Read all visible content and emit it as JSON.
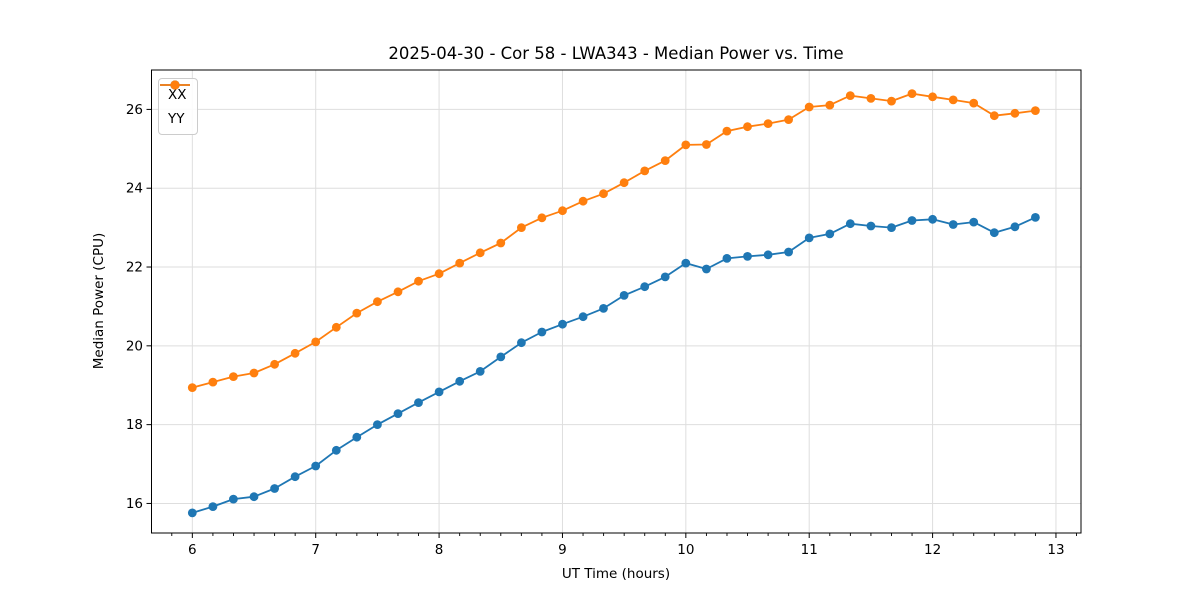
{
  "chart_data": {
    "type": "line",
    "title": "2025-04-30 - Cor 58 - LWA343 - Median Power vs. Time",
    "xlabel": "UT Time (hours)",
    "ylabel": "Median Power (CPU)",
    "xlim": [
      5.669,
      13.203
    ],
    "ylim": [
      15.25,
      27.0
    ],
    "xticks": [
      6,
      7,
      8,
      9,
      10,
      11,
      12,
      13
    ],
    "yticks": [
      16,
      18,
      20,
      22,
      24,
      26
    ],
    "minor_xtick_step": 0.16667,
    "grid": true,
    "grid_color": "#dedede",
    "legend_position": "upper left",
    "x": [
      6.0,
      6.167,
      6.333,
      6.5,
      6.667,
      6.833,
      7.0,
      7.167,
      7.333,
      7.5,
      7.667,
      7.833,
      8.0,
      8.167,
      8.333,
      8.5,
      8.667,
      8.833,
      9.0,
      9.167,
      9.333,
      9.5,
      9.667,
      9.833,
      10.0,
      10.167,
      10.333,
      10.5,
      10.667,
      10.833,
      11.0,
      11.167,
      11.333,
      11.5,
      11.667,
      11.833,
      12.0,
      12.167,
      12.333,
      12.5,
      12.667,
      12.833
    ],
    "series": [
      {
        "name": "XX",
        "color": "#1f77b4",
        "values": [
          15.76,
          15.92,
          16.11,
          16.17,
          16.38,
          16.68,
          16.95,
          17.35,
          17.68,
          18.0,
          18.28,
          18.56,
          18.83,
          19.1,
          19.35,
          19.72,
          20.08,
          20.35,
          20.55,
          20.74,
          20.95,
          21.28,
          21.5,
          21.75,
          22.1,
          21.95,
          22.22,
          22.27,
          22.31,
          22.38,
          22.74,
          22.84,
          23.1,
          23.04,
          23.0,
          23.18,
          23.21,
          23.08,
          23.14,
          22.87,
          23.02,
          23.26
        ]
      },
      {
        "name": "YY",
        "color": "#ff7f0e",
        "values": [
          18.94,
          19.08,
          19.22,
          19.31,
          19.53,
          19.81,
          20.1,
          20.47,
          20.83,
          21.12,
          21.37,
          21.64,
          21.83,
          22.1,
          22.36,
          22.61,
          23.0,
          23.25,
          23.43,
          23.67,
          23.86,
          24.14,
          24.44,
          24.7,
          25.1,
          25.11,
          25.45,
          25.56,
          25.64,
          25.74,
          26.06,
          26.11,
          26.35,
          26.28,
          26.21,
          26.4,
          26.32,
          26.24,
          26.16,
          25.84,
          25.9,
          25.97
        ]
      }
    ]
  }
}
